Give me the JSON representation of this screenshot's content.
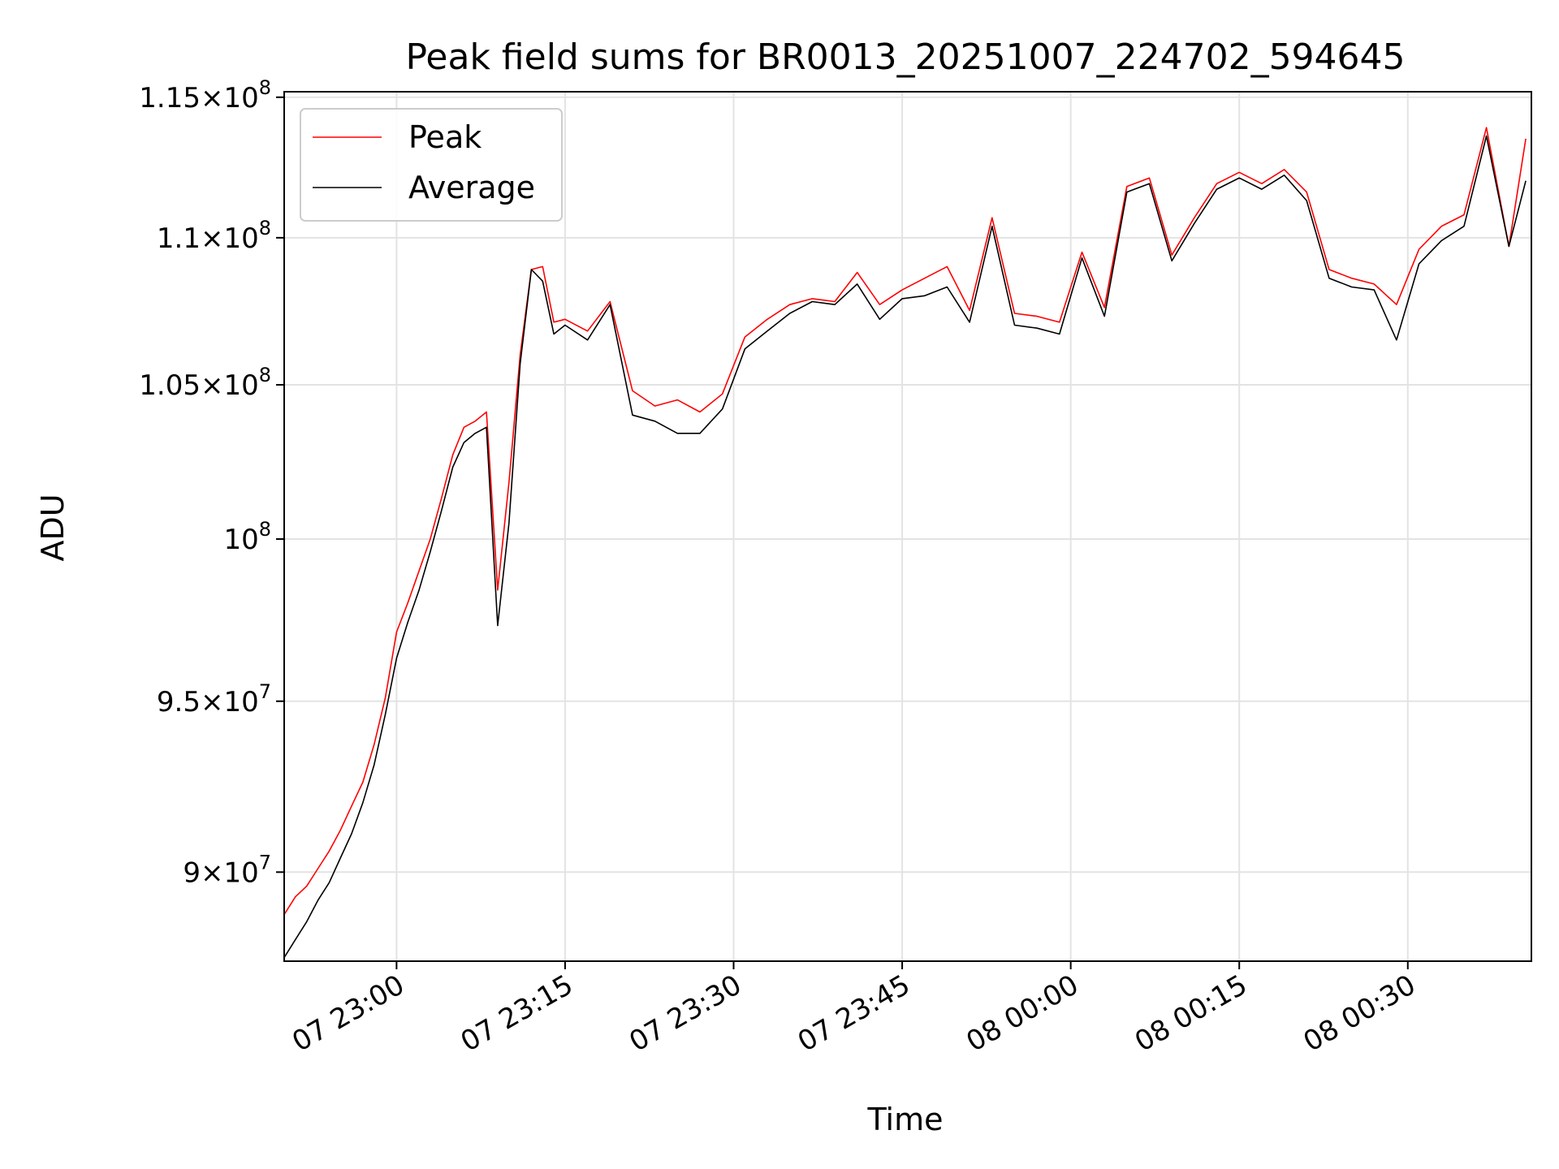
{
  "chart_data": {
    "type": "line",
    "title": "Peak field sums for BR0013_20251007_224702_594645",
    "xlabel": "Time",
    "ylabel": "ADU",
    "xlim": [
      "2025-10-07T22:50:00",
      "2025-10-08T00:41:00"
    ],
    "ylim": [
      87500000,
      115200000
    ],
    "yscale": "log",
    "grid": true,
    "legend": "upper-left",
    "x_ticks": [
      {
        "value": "2025-10-07T23:00:00",
        "label": "07 23:00"
      },
      {
        "value": "2025-10-07T23:15:00",
        "label": "07 23:15"
      },
      {
        "value": "2025-10-07T23:30:00",
        "label": "07 23:30"
      },
      {
        "value": "2025-10-07T23:45:00",
        "label": "07 23:45"
      },
      {
        "value": "2025-10-08T00:00:00",
        "label": "08 00:00"
      },
      {
        "value": "2025-10-08T00:15:00",
        "label": "08 00:15"
      },
      {
        "value": "2025-10-08T00:30:00",
        "label": "08 00:30"
      }
    ],
    "y_ticks": [
      {
        "value": 90000000,
        "mantissa": "9",
        "exp": "7"
      },
      {
        "value": 95000000,
        "mantissa": "9.5",
        "exp": "7"
      },
      {
        "value": 100000000,
        "mantissa": "",
        "exp": "8"
      },
      {
        "value": 105000000,
        "mantissa": "1.05",
        "exp": "8"
      },
      {
        "value": 110000000,
        "mantissa": "1.1",
        "exp": "8"
      },
      {
        "value": 115000000,
        "mantissa": "1.15",
        "exp": "8"
      }
    ],
    "series": [
      {
        "name": "Peak",
        "color": "#ff0000",
        "x": [
          "2025-10-07T22:50:00",
          "2025-10-07T22:51:00",
          "2025-10-07T22:52:00",
          "2025-10-07T22:53:00",
          "2025-10-07T22:54:00",
          "2025-10-07T22:55:00",
          "2025-10-07T22:56:00",
          "2025-10-07T22:57:00",
          "2025-10-07T22:58:00",
          "2025-10-07T22:59:00",
          "2025-10-07T23:00:00",
          "2025-10-07T23:01:00",
          "2025-10-07T23:02:00",
          "2025-10-07T23:03:00",
          "2025-10-07T23:04:00",
          "2025-10-07T23:05:00",
          "2025-10-07T23:06:00",
          "2025-10-07T23:07:00",
          "2025-10-07T23:08:00",
          "2025-10-07T23:09:00",
          "2025-10-07T23:10:00",
          "2025-10-07T23:11:00",
          "2025-10-07T23:12:00",
          "2025-10-07T23:13:00",
          "2025-10-07T23:14:00",
          "2025-10-07T23:15:00",
          "2025-10-07T23:17:00",
          "2025-10-07T23:19:00",
          "2025-10-07T23:21:00",
          "2025-10-07T23:23:00",
          "2025-10-07T23:25:00",
          "2025-10-07T23:27:00",
          "2025-10-07T23:29:00",
          "2025-10-07T23:31:00",
          "2025-10-07T23:33:00",
          "2025-10-07T23:35:00",
          "2025-10-07T23:37:00",
          "2025-10-07T23:39:00",
          "2025-10-07T23:41:00",
          "2025-10-07T23:43:00",
          "2025-10-07T23:45:00",
          "2025-10-07T23:47:00",
          "2025-10-07T23:49:00",
          "2025-10-07T23:51:00",
          "2025-10-07T23:53:00",
          "2025-10-07T23:55:00",
          "2025-10-07T23:57:00",
          "2025-10-07T23:59:00",
          "2025-10-08T00:01:00",
          "2025-10-08T00:03:00",
          "2025-10-08T00:05:00",
          "2025-10-08T00:07:00",
          "2025-10-08T00:09:00",
          "2025-10-08T00:11:00",
          "2025-10-08T00:13:00",
          "2025-10-08T00:15:00",
          "2025-10-08T00:17:00",
          "2025-10-08T00:19:00",
          "2025-10-08T00:21:00",
          "2025-10-08T00:23:00",
          "2025-10-08T00:25:00",
          "2025-10-08T00:27:00",
          "2025-10-08T00:29:00",
          "2025-10-08T00:31:00",
          "2025-10-08T00:33:00",
          "2025-10-08T00:35:00",
          "2025-10-08T00:37:00",
          "2025-10-08T00:39:00",
          "2025-10-08T00:40:30"
        ],
        "values": [
          88800000,
          89300000,
          89600000,
          90100000,
          90600000,
          91200000,
          91900000,
          92600000,
          93700000,
          95100000,
          97100000,
          98000000,
          99000000,
          100000000,
          101300000,
          102700000,
          103600000,
          103800000,
          104100000,
          98400000,
          101800000,
          106000000,
          108900000,
          109000000,
          107100000,
          107200000,
          106800000,
          107800000,
          104800000,
          104300000,
          104500000,
          104100000,
          104700000,
          106600000,
          107200000,
          107700000,
          107900000,
          107800000,
          108800000,
          107700000,
          108200000,
          108600000,
          109000000,
          107500000,
          110700000,
          107400000,
          107300000,
          107100000,
          109500000,
          107600000,
          111800000,
          112100000,
          109400000,
          110700000,
          111900000,
          112300000,
          111900000,
          112400000,
          111600000,
          108900000,
          108600000,
          108400000,
          107700000,
          109600000,
          110400000,
          110800000,
          113900000,
          109700000,
          113500000
        ]
      },
      {
        "name": "Average",
        "color": "#000000",
        "x": [
          "2025-10-07T22:50:00",
          "2025-10-07T22:51:00",
          "2025-10-07T22:52:00",
          "2025-10-07T22:53:00",
          "2025-10-07T22:54:00",
          "2025-10-07T22:55:00",
          "2025-10-07T22:56:00",
          "2025-10-07T22:57:00",
          "2025-10-07T22:58:00",
          "2025-10-07T22:59:00",
          "2025-10-07T23:00:00",
          "2025-10-07T23:01:00",
          "2025-10-07T23:02:00",
          "2025-10-07T23:03:00",
          "2025-10-07T23:04:00",
          "2025-10-07T23:05:00",
          "2025-10-07T23:06:00",
          "2025-10-07T23:07:00",
          "2025-10-07T23:08:00",
          "2025-10-07T23:09:00",
          "2025-10-07T23:10:00",
          "2025-10-07T23:11:00",
          "2025-10-07T23:12:00",
          "2025-10-07T23:13:00",
          "2025-10-07T23:14:00",
          "2025-10-07T23:15:00",
          "2025-10-07T23:17:00",
          "2025-10-07T23:19:00",
          "2025-10-07T23:21:00",
          "2025-10-07T23:23:00",
          "2025-10-07T23:25:00",
          "2025-10-07T23:27:00",
          "2025-10-07T23:29:00",
          "2025-10-07T23:31:00",
          "2025-10-07T23:33:00",
          "2025-10-07T23:35:00",
          "2025-10-07T23:37:00",
          "2025-10-07T23:39:00",
          "2025-10-07T23:41:00",
          "2025-10-07T23:43:00",
          "2025-10-07T23:45:00",
          "2025-10-07T23:47:00",
          "2025-10-07T23:49:00",
          "2025-10-07T23:51:00",
          "2025-10-07T23:53:00",
          "2025-10-07T23:55:00",
          "2025-10-07T23:57:00",
          "2025-10-07T23:59:00",
          "2025-10-08T00:01:00",
          "2025-10-08T00:03:00",
          "2025-10-08T00:05:00",
          "2025-10-08T00:07:00",
          "2025-10-08T00:09:00",
          "2025-10-08T00:11:00",
          "2025-10-08T00:13:00",
          "2025-10-08T00:15:00",
          "2025-10-08T00:17:00",
          "2025-10-08T00:19:00",
          "2025-10-08T00:21:00",
          "2025-10-08T00:23:00",
          "2025-10-08T00:25:00",
          "2025-10-08T00:27:00",
          "2025-10-08T00:29:00",
          "2025-10-08T00:31:00",
          "2025-10-08T00:33:00",
          "2025-10-08T00:35:00",
          "2025-10-08T00:37:00",
          "2025-10-08T00:39:00",
          "2025-10-08T00:40:30"
        ],
        "values": [
          87600000,
          88100000,
          88600000,
          89200000,
          89700000,
          90400000,
          91100000,
          92000000,
          93100000,
          94600000,
          96300000,
          97400000,
          98400000,
          99600000,
          100900000,
          102300000,
          103100000,
          103400000,
          103600000,
          97300000,
          100500000,
          105700000,
          108900000,
          108500000,
          106700000,
          107000000,
          106500000,
          107700000,
          104000000,
          103800000,
          103400000,
          103400000,
          104200000,
          106200000,
          106800000,
          107400000,
          107800000,
          107700000,
          108400000,
          107200000,
          107900000,
          108000000,
          108300000,
          107100000,
          110400000,
          107000000,
          106900000,
          106700000,
          109300000,
          107300000,
          111600000,
          111900000,
          109200000,
          110500000,
          111700000,
          112100000,
          111700000,
          112200000,
          111300000,
          108600000,
          108300000,
          108200000,
          106500000,
          109100000,
          109900000,
          110400000,
          113600000,
          109700000,
          112000000
        ]
      }
    ]
  }
}
